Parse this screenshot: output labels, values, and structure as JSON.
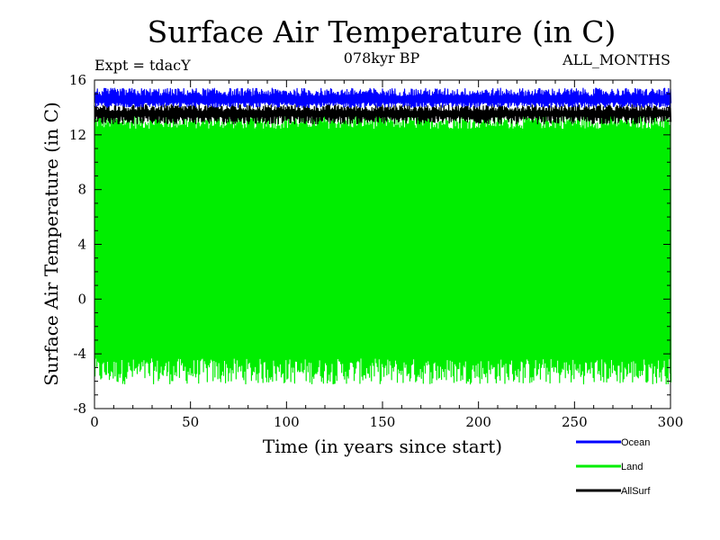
{
  "chart_data": {
    "type": "line",
    "title": "Surface Air Temperature (in C)",
    "subtitle": "078kyr BP",
    "left_label": "Expt = tdacY",
    "right_label": "ALL_MONTHS",
    "xlabel": "Time (in years since start)",
    "ylabel": "Surface Air Temperature (in C)",
    "xlim": [
      0,
      300
    ],
    "ylim": [
      -8,
      16
    ],
    "x_ticks": [
      0,
      50,
      100,
      150,
      200,
      250,
      300
    ],
    "y_ticks": [
      -8,
      -4,
      0,
      4,
      8,
      12,
      16
    ],
    "series": [
      {
        "name": "Land",
        "color": "#00ee00",
        "band_low": [
          -6.2,
          -4.3
        ],
        "band_high": [
          12.4,
          13.5
        ],
        "mean": 3.9
      },
      {
        "name": "AllSurf",
        "color": "#000000",
        "band_low": [
          12.8,
          13.4
        ],
        "band_high": [
          13.7,
          14.2
        ],
        "mean": 13.6
      },
      {
        "name": "Ocean",
        "color": "#0000ff",
        "band_low": [
          14.0,
          14.4
        ],
        "band_high": [
          14.8,
          15.4
        ],
        "mean": 14.7
      }
    ],
    "legend": {
      "position": "bottom-right",
      "entries": [
        {
          "name": "Ocean",
          "color": "#0000ff"
        },
        {
          "name": "Land",
          "color": "#00ee00"
        },
        {
          "name": "AllSurf",
          "color": "#000000"
        }
      ]
    }
  }
}
